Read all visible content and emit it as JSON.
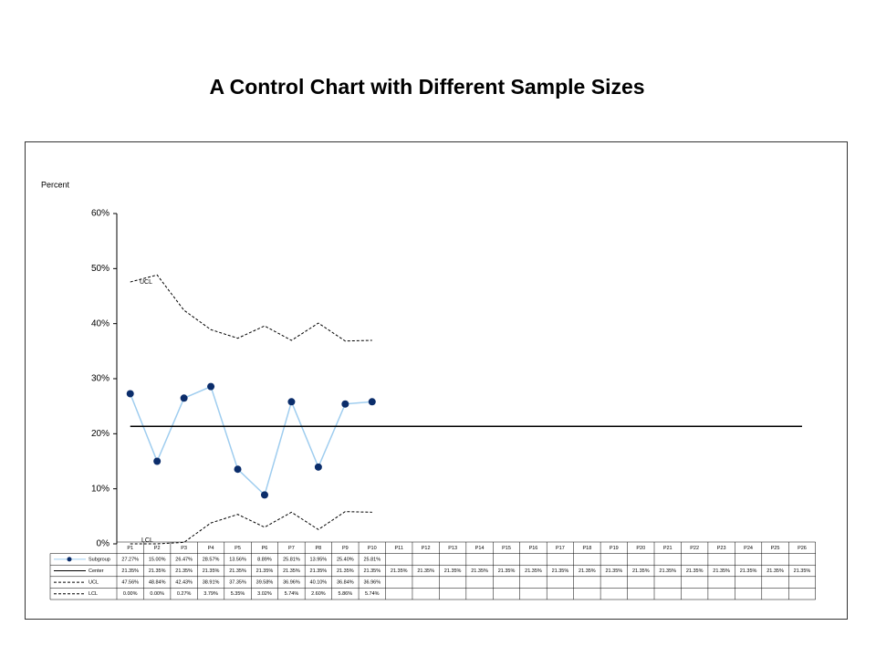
{
  "chart_data": {
    "type": "line",
    "title": "A Control Chart with Different Sample Sizes",
    "y_label": "Percent",
    "categories": [
      "P1",
      "P2",
      "P3",
      "P4",
      "P5",
      "P6",
      "P7",
      "P8",
      "P9",
      "P10",
      "P11",
      "P12",
      "P13",
      "P14",
      "P15",
      "P16",
      "P17",
      "P18",
      "P19",
      "P20",
      "P21",
      "P22",
      "P23",
      "P24",
      "P25",
      "P26"
    ],
    "ylim": [
      0,
      60
    ],
    "yticks": [
      {
        "value": 0,
        "label": "0%"
      },
      {
        "value": 10,
        "label": "10%"
      },
      {
        "value": 20,
        "label": "20%"
      },
      {
        "value": 30,
        "label": "30%"
      },
      {
        "value": 40,
        "label": "40%"
      },
      {
        "value": 50,
        "label": "50%"
      },
      {
        "value": 60,
        "label": "60%"
      }
    ],
    "annotations": [
      "UCL",
      "LCL"
    ],
    "series": [
      {
        "name": "Subgroup",
        "color": "#9fcdef",
        "marker_color": "#0b2d6b",
        "dash": false,
        "markers": true,
        "values": [
          27.27,
          15.0,
          26.47,
          28.57,
          13.56,
          8.89,
          25.81,
          13.95,
          25.4,
          25.81,
          null,
          null,
          null,
          null,
          null,
          null,
          null,
          null,
          null,
          null,
          null,
          null,
          null,
          null,
          null,
          null
        ],
        "value_labels": [
          "27.27%",
          "15.00%",
          "26.47%",
          "28.57%",
          "13.56%",
          "8.89%",
          "25.81%",
          "13.95%",
          "25.40%",
          "25.81%",
          null,
          null,
          null,
          null,
          null,
          null,
          null,
          null,
          null,
          null,
          null,
          null,
          null,
          null,
          null,
          null
        ]
      },
      {
        "name": "Center",
        "color": "#000000",
        "dash": false,
        "markers": false,
        "values": [
          21.35,
          21.35,
          21.35,
          21.35,
          21.35,
          21.35,
          21.35,
          21.35,
          21.35,
          21.35,
          21.35,
          21.35,
          21.35,
          21.35,
          21.35,
          21.35,
          21.35,
          21.35,
          21.35,
          21.35,
          21.35,
          21.35,
          21.35,
          21.35,
          21.35,
          21.35
        ],
        "value_labels": [
          "21.35%",
          "21.35%",
          "21.35%",
          "21.35%",
          "21.35%",
          "21.35%",
          "21.35%",
          "21.35%",
          "21.35%",
          "21.35%",
          "21.35%",
          "21.35%",
          "21.35%",
          "21.35%",
          "21.35%",
          "21.35%",
          "21.35%",
          "21.35%",
          "21.35%",
          "21.35%",
          "21.35%",
          "21.35%",
          "21.35%",
          "21.35%",
          "21.35%",
          "21.35%"
        ]
      },
      {
        "name": "UCL",
        "color": "#000000",
        "dash": true,
        "markers": false,
        "values": [
          47.56,
          48.84,
          42.43,
          38.91,
          37.35,
          39.58,
          36.96,
          40.1,
          36.84,
          36.96,
          null,
          null,
          null,
          null,
          null,
          null,
          null,
          null,
          null,
          null,
          null,
          null,
          null,
          null,
          null,
          null
        ],
        "value_labels": [
          "47.56%",
          "48.84%",
          "42.43%",
          "38.91%",
          "37.35%",
          "39.58%",
          "36.96%",
          "40.10%",
          "36.84%",
          "36.96%",
          null,
          null,
          null,
          null,
          null,
          null,
          null,
          null,
          null,
          null,
          null,
          null,
          null,
          null,
          null,
          null
        ]
      },
      {
        "name": "LCL",
        "color": "#000000",
        "dash": true,
        "markers": false,
        "values": [
          0.0,
          0.0,
          0.27,
          3.79,
          5.35,
          3.02,
          5.74,
          2.6,
          5.86,
          5.74,
          null,
          null,
          null,
          null,
          null,
          null,
          null,
          null,
          null,
          null,
          null,
          null,
          null,
          null,
          null,
          null
        ],
        "value_labels": [
          "0.00%",
          "0.00%",
          "0.27%",
          "3.79%",
          "5.35%",
          "3.02%",
          "5.74%",
          "2.60%",
          "5.86%",
          "5.74%",
          null,
          null,
          null,
          null,
          null,
          null,
          null,
          null,
          null,
          null,
          null,
          null,
          null,
          null,
          null,
          null
        ]
      }
    ]
  }
}
